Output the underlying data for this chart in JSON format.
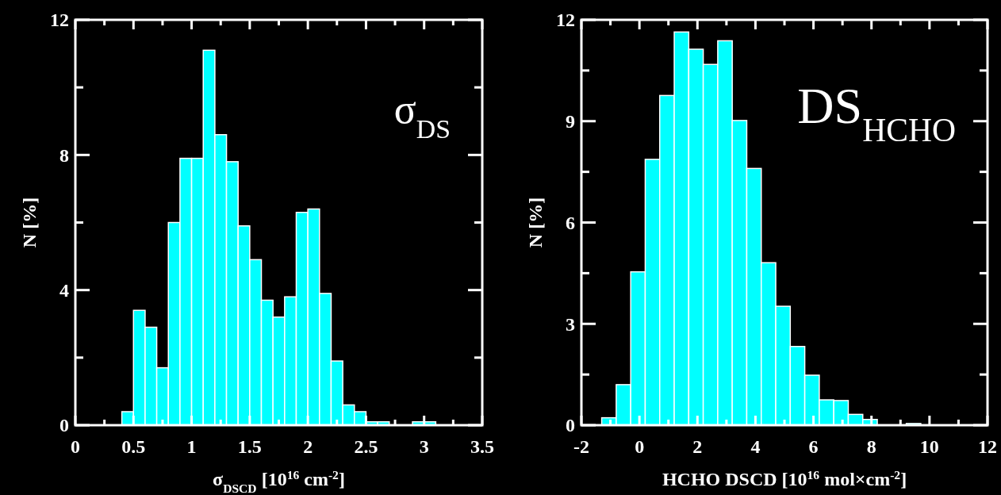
{
  "chart_data": [
    {
      "type": "histogram",
      "xlabel": "σ$_{DSCD}$ [10$^{16}$ cm$^{-2}$]",
      "ylabel": "N [%]",
      "annotations": [
        {
          "text": "σ$_{DS}$"
        }
      ],
      "bins": [
        0.4,
        0.5,
        0.6,
        0.7,
        0.8,
        0.9,
        1.0,
        1.1,
        1.2,
        1.3,
        1.4,
        1.5,
        1.6,
        1.7,
        1.8,
        1.9,
        2.0,
        2.1,
        2.2,
        2.3,
        2.4,
        2.5,
        2.6,
        2.7,
        2.8,
        2.9,
        3.0,
        3.1,
        3.2,
        3.3
      ],
      "values": [
        0.4,
        3.4,
        2.9,
        1.7,
        6.0,
        7.9,
        7.9,
        11.1,
        8.6,
        7.8,
        5.9,
        4.9,
        3.7,
        3.2,
        3.8,
        6.3,
        6.4,
        3.9,
        1.9,
        0.6,
        0.4,
        0.1,
        0.1,
        0,
        0,
        0.1,
        0.1,
        0,
        0
      ],
      "color": "#00ffff",
      "xlim": [
        0,
        3.5
      ],
      "ylim": [
        0,
        12
      ],
      "xticks": [
        0,
        {
          "value": 0.25,
          "label": null
        },
        0.5,
        {
          "value": 0.75,
          "label": null
        },
        1,
        {
          "value": 1.25,
          "label": null
        },
        1.5,
        {
          "value": 1.75,
          "label": null
        },
        2,
        {
          "value": 2.25,
          "label": null
        },
        2.5,
        {
          "value": 2.75,
          "label": null
        },
        3,
        {
          "value": 3.25,
          "label": null
        },
        3.5
      ],
      "yticks": [
        0,
        {
          "value": 2,
          "label": null
        },
        4,
        {
          "value": 6,
          "label": null
        },
        8,
        {
          "value": 10,
          "label": null
        },
        12
      ]
    },
    {
      "type": "histogram",
      "xlabel": "HCHO DSCD [10$^{16}$ mol×cm$^{-2}$]",
      "ylabel": "N [%]",
      "annotations": [
        {
          "text": "DS$_{HCHO}$"
        }
      ],
      "bins": [
        -1.3,
        -0.8,
        -0.3,
        0.2,
        0.7,
        1.2,
        1.7,
        2.2,
        2.7,
        3.2,
        3.7,
        4.2,
        4.7,
        5.2,
        5.7,
        6.2,
        6.7,
        7.2,
        7.7,
        8.2,
        8.7,
        9.2,
        9.7,
        10.2,
        10.7,
        11.2,
        11.7
      ],
      "values": [
        0.22,
        1.2,
        4.54,
        7.87,
        9.76,
        11.64,
        11.13,
        10.68,
        11.38,
        9.02,
        7.6,
        4.81,
        3.52,
        2.33,
        1.48,
        0.75,
        0.73,
        0.32,
        0.17,
        0,
        0,
        0.05,
        0,
        0,
        0,
        0
      ],
      "color": "#00ffff",
      "xlim": [
        -2,
        12
      ],
      "ylim": [
        0,
        12
      ],
      "xticks": [
        -2,
        {
          "value": -1,
          "label": null
        },
        0,
        {
          "value": 1,
          "label": null
        },
        2,
        {
          "value": 3,
          "label": null
        },
        4,
        {
          "value": 5,
          "label": null
        },
        6,
        {
          "value": 7,
          "label": null
        },
        8,
        {
          "value": 9,
          "label": null
        },
        10,
        {
          "value": 11,
          "label": null
        },
        12
      ],
      "yticks": [
        0,
        {
          "value": 1.5,
          "label": null
        },
        3,
        {
          "value": 4.5,
          "label": null
        },
        6,
        {
          "value": 7.5,
          "label": null
        },
        9,
        {
          "value": 10.5,
          "label": null
        },
        12
      ]
    }
  ]
}
